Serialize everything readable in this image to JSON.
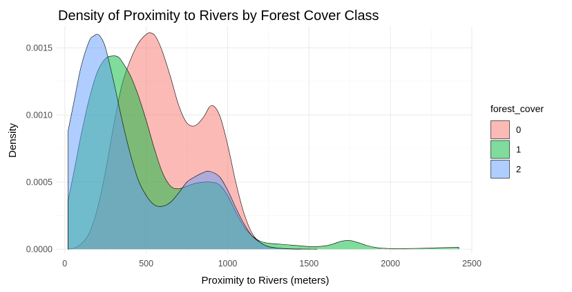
{
  "chart_data": {
    "type": "area",
    "subtype": "density",
    "title": "Density of Proximity to Rivers by Forest Cover Class",
    "xlabel": "Proximity to Rivers (meters)",
    "ylabel": "Density",
    "xlim": [
      -50,
      2500
    ],
    "ylim": [
      -3e-05,
      0.00166
    ],
    "x_ticks": [
      0,
      500,
      1000,
      1500,
      2000,
      2500
    ],
    "x_tick_labels": [
      "0",
      "500",
      "1000",
      "1500",
      "2000",
      "2500"
    ],
    "y_ticks": [
      0,
      0.0005,
      0.001,
      0.0015
    ],
    "y_tick_labels": [
      "0.0000",
      "0.0005",
      "0.0010",
      "0.0015"
    ],
    "grid": true,
    "legend": {
      "title": "forest_cover",
      "position": "right"
    },
    "series": [
      {
        "name": "0",
        "color": "#F8766D",
        "x": [
          20,
          60,
          100,
          150,
          200,
          250,
          300,
          350,
          400,
          450,
          500,
          530,
          560,
          600,
          650,
          700,
          750,
          800,
          850,
          900,
          950,
          1000,
          1050,
          1100,
          1150,
          1200,
          1250,
          1300,
          1350,
          1400,
          1450
        ],
        "y": [
          0.0,
          1e-05,
          4e-05,
          0.00012,
          0.0003,
          0.00058,
          0.00092,
          0.00122,
          0.0014,
          0.00153,
          0.0016,
          0.00161,
          0.00158,
          0.00147,
          0.00128,
          0.00107,
          0.00094,
          0.00092,
          0.00098,
          0.00107,
          0.001,
          0.00078,
          0.0005,
          0.00027,
          0.00012,
          5e-05,
          2e-05,
          8e-06,
          3e-06,
          1e-06,
          0.0
        ]
      },
      {
        "name": "1",
        "color": "#00BA38",
        "x": [
          20,
          60,
          100,
          150,
          200,
          250,
          300,
          330,
          350,
          400,
          450,
          500,
          550,
          600,
          650,
          700,
          750,
          800,
          850,
          900,
          950,
          1000,
          1050,
          1100,
          1150,
          1200,
          1250,
          1300,
          1350,
          1400,
          1450,
          1500,
          1550,
          1600,
          1650,
          1700,
          1750,
          1800,
          1850,
          1900,
          1950,
          2000,
          2050,
          2100,
          2150,
          2200,
          2250,
          2300,
          2350,
          2420
        ],
        "y": [
          0.00036,
          0.0006,
          0.00085,
          0.00112,
          0.00132,
          0.00142,
          0.00144,
          0.00143,
          0.0014,
          0.0013,
          0.00115,
          0.00096,
          0.00075,
          0.00057,
          0.00047,
          0.00045,
          0.00047,
          0.00049,
          0.0005,
          0.0005,
          0.00048,
          0.0004,
          0.00028,
          0.00017,
          0.0001,
          6e-05,
          4.5e-05,
          4e-05,
          3.5e-05,
          3e-05,
          2.5e-05,
          2e-05,
          2e-05,
          2.5e-05,
          4e-05,
          6e-05,
          6.5e-05,
          5e-05,
          3e-05,
          1.5e-05,
          8e-06,
          5e-06,
          4e-06,
          5e-06,
          6e-06,
          7e-06,
          9e-06,
          1.1e-05,
          1.2e-05,
          1.4e-05
        ]
      },
      {
        "name": "2",
        "color": "#619CFF",
        "x": [
          20,
          60,
          100,
          150,
          180,
          200,
          220,
          250,
          300,
          350,
          400,
          450,
          500,
          550,
          600,
          650,
          700,
          750,
          800,
          850,
          890,
          950,
          1000,
          1050,
          1100,
          1150,
          1200,
          1250,
          1300,
          1350,
          1400,
          1450,
          1500,
          1550
        ],
        "y": [
          0.00088,
          0.00112,
          0.00136,
          0.00155,
          0.00159,
          0.0016,
          0.00158,
          0.0015,
          0.00125,
          0.00097,
          0.00072,
          0.00052,
          0.0004,
          0.00033,
          0.00032,
          0.00035,
          0.00042,
          0.0005,
          0.00054,
          0.00057,
          0.00058,
          0.00054,
          0.00044,
          0.00031,
          0.00019,
          0.0001,
          5e-05,
          2e-05,
          1e-05,
          5e-06,
          2e-06,
          1e-06,
          5e-07,
          0.0
        ]
      }
    ]
  }
}
